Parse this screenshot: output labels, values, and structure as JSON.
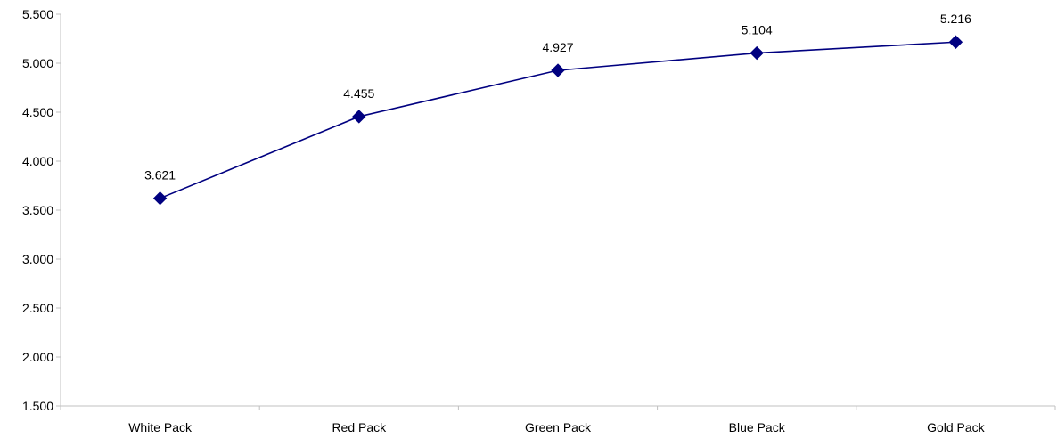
{
  "chart_data": {
    "type": "line",
    "title": "",
    "xlabel": "",
    "ylabel": "",
    "categories": [
      "White Pack",
      "Red Pack",
      "Green Pack",
      "Blue Pack",
      "Gold Pack"
    ],
    "series": [
      {
        "values": [
          3.621,
          4.455,
          4.927,
          5.104,
          5.216
        ],
        "data_labels": [
          "3.621",
          "4.455",
          "4.927",
          "5.104",
          "5.216"
        ],
        "color": "#000080",
        "marker": "diamond"
      }
    ],
    "ylim": [
      1.5,
      5.5
    ],
    "y_ticks": [
      1.5,
      2.0,
      2.5,
      3.0,
      3.5,
      4.0,
      4.5,
      5.0,
      5.5
    ],
    "y_tick_labels": [
      "1.500",
      "2.000",
      "2.500",
      "3.000",
      "3.500",
      "4.000",
      "4.500",
      "5.000",
      "5.500"
    ],
    "grid": false,
    "legend": "none",
    "axis_color": "#c0c0c0"
  }
}
